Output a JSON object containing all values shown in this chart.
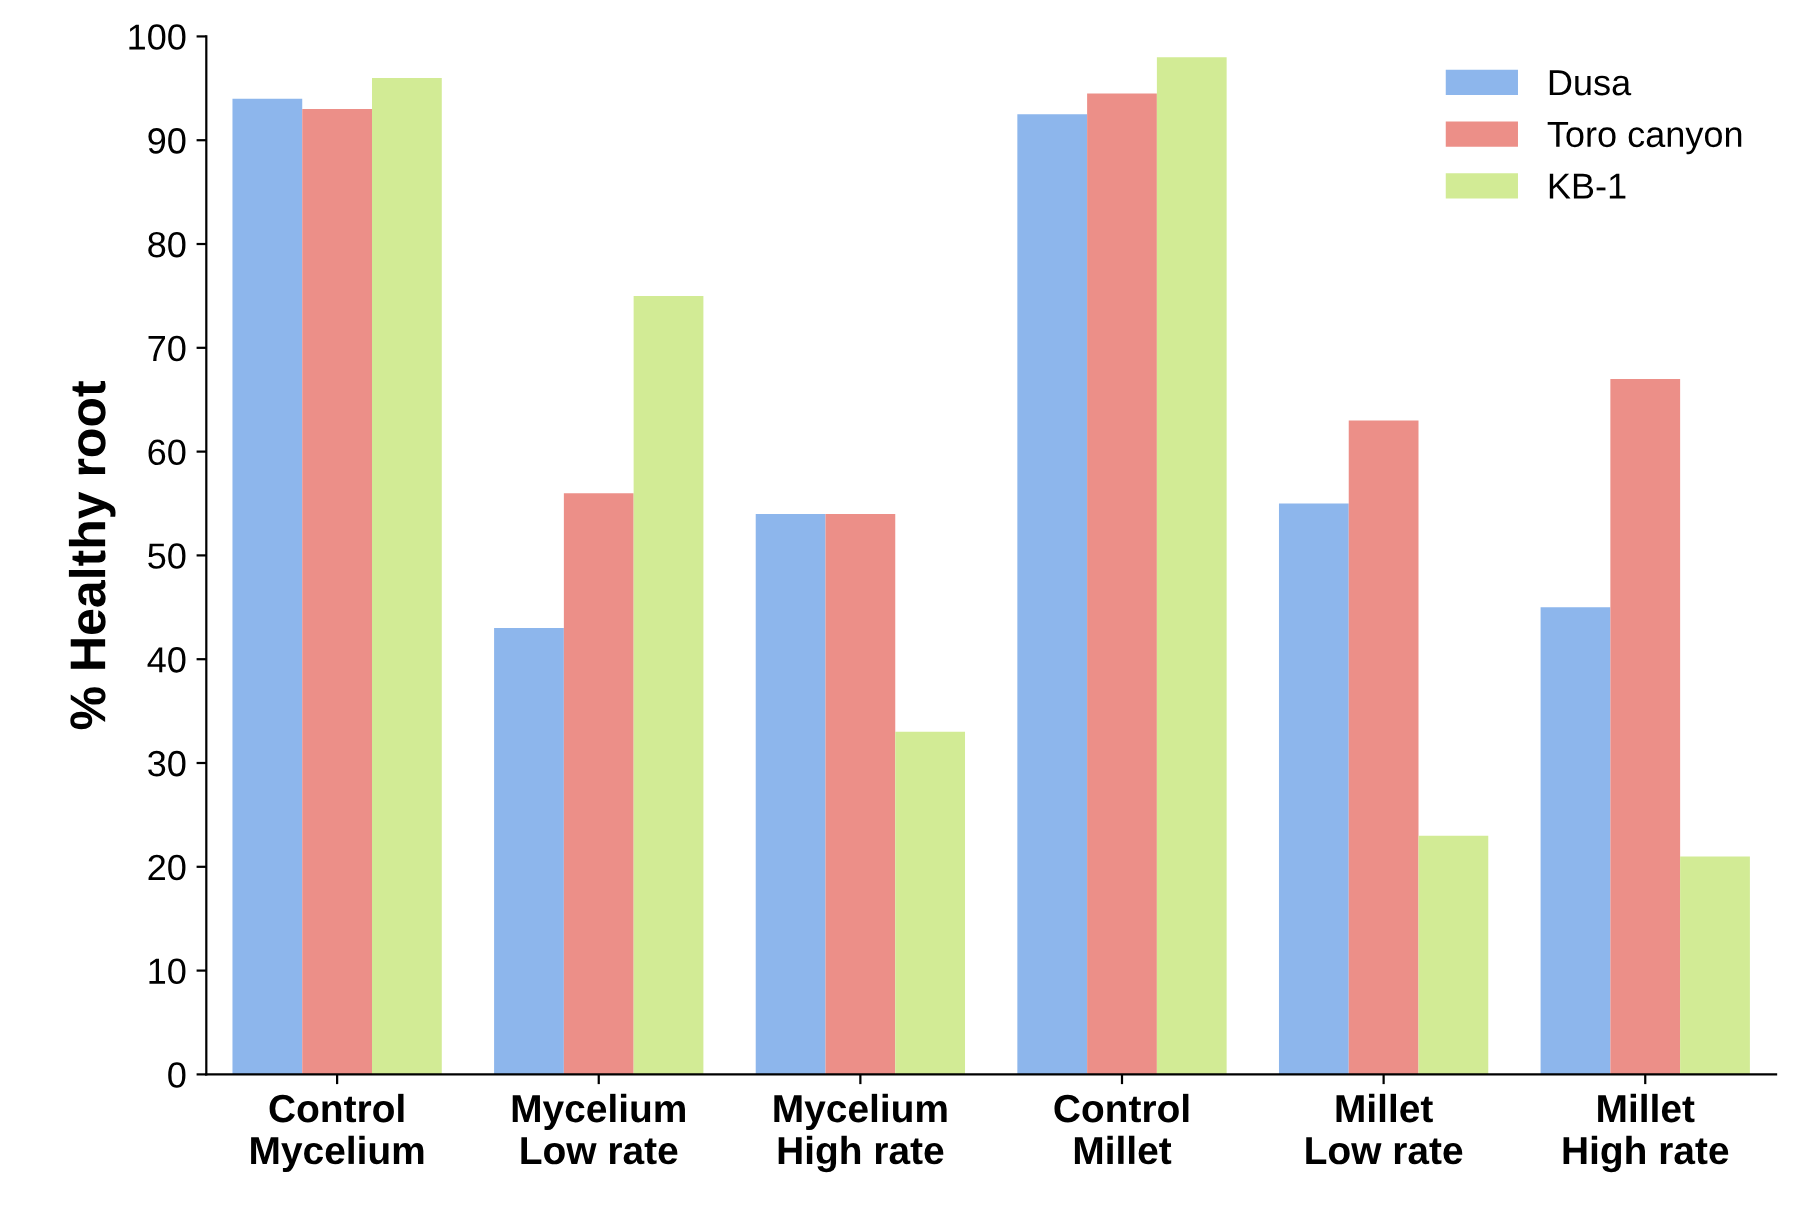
{
  "chart_data": {
    "type": "bar",
    "ylabel": "% Healthy root",
    "categories": [
      "Control\nMycelium",
      "Mycelium\nLow rate",
      "Mycelium\nHigh rate",
      "Control\nMillet",
      "Millet\nLow rate",
      "Millet\nHigh rate"
    ],
    "series": [
      {
        "name": "Dusa",
        "color": "#8db6ec",
        "values": [
          94,
          43,
          54,
          92.5,
          55,
          45
        ]
      },
      {
        "name": "Toro canyon",
        "color": "#ec8f88",
        "values": [
          93,
          56,
          54,
          94.5,
          63,
          67
        ]
      },
      {
        "name": "KB-1",
        "color": "#d2eb95",
        "values": [
          96,
          75,
          33,
          98,
          23,
          21
        ]
      }
    ],
    "ylim": [
      0,
      100
    ],
    "yticks": [
      0,
      10,
      20,
      30,
      40,
      50,
      60,
      70,
      80,
      90,
      100
    ],
    "grid": false,
    "legend": "top right"
  }
}
